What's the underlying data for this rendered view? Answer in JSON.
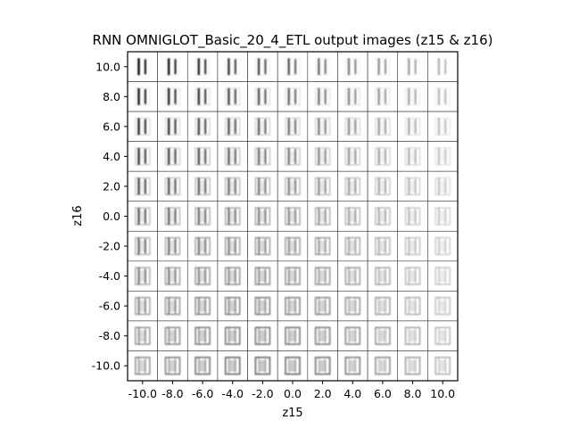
{
  "figure": {
    "title": "RNN OMNIGLOT_Basic_20_4_ETL output images (z15 & z16)",
    "xlabel": "z15",
    "ylabel": "z16"
  },
  "grid": {
    "x_values": [
      -10.0,
      -8.0,
      -6.0,
      -4.0,
      -2.0,
      0.0,
      2.0,
      4.0,
      6.0,
      8.0,
      10.0
    ],
    "y_values": [
      10.0,
      8.0,
      6.0,
      4.0,
      2.0,
      0.0,
      -2.0,
      -4.0,
      -6.0,
      -8.0,
      -10.0
    ],
    "x_tick_labels": [
      "-10.0",
      "-8.0",
      "-6.0",
      "-4.0",
      "-2.0",
      "0.0",
      "2.0",
      "4.0",
      "6.0",
      "8.0",
      "10.0"
    ],
    "y_tick_labels": [
      "10.0",
      "8.0",
      "6.0",
      "4.0",
      "2.0",
      "0.0",
      "-2.0",
      "-4.0",
      "-6.0",
      "-8.0",
      "-10.0"
    ],
    "colors": {
      "ink": "#000000",
      "background": "#ffffff",
      "cell_border": "#333333"
    }
  }
}
